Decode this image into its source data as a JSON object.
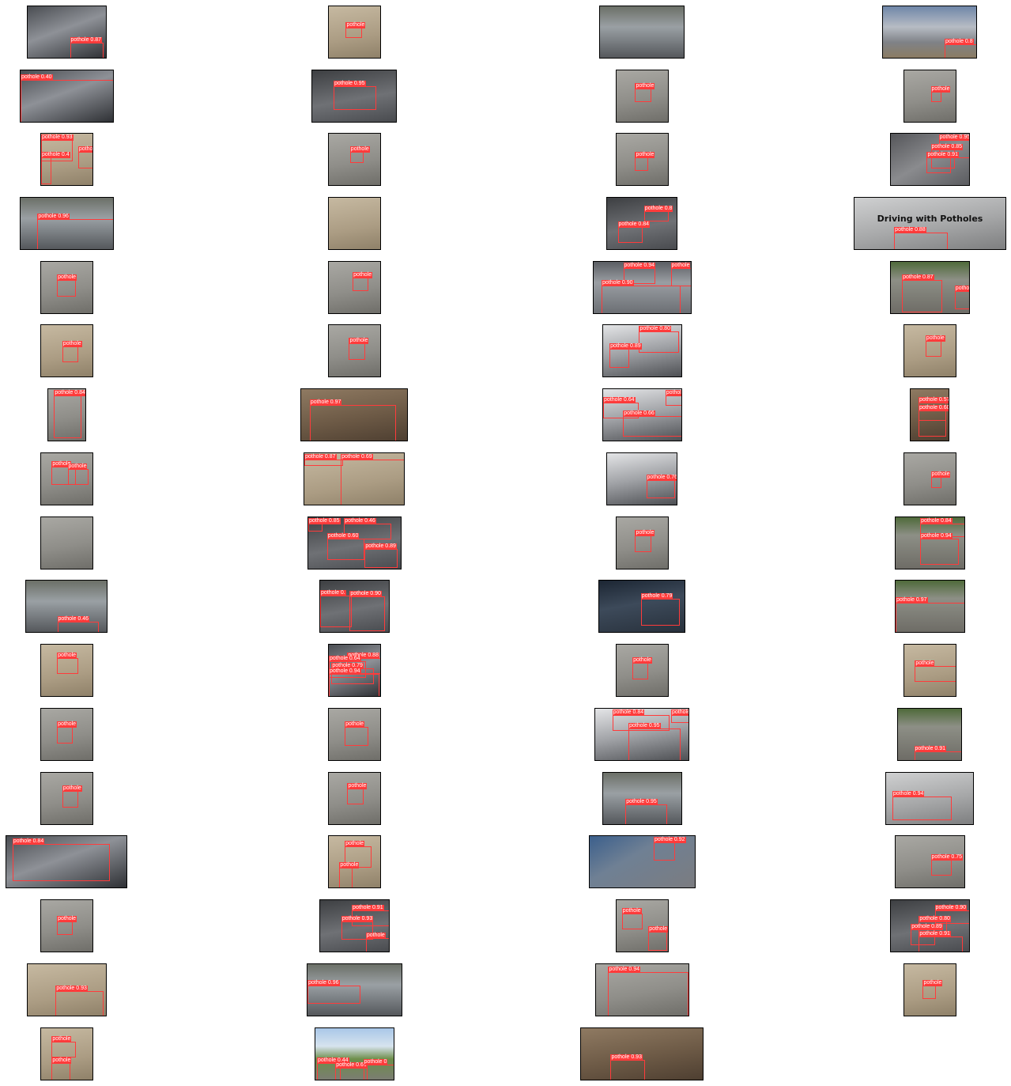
{
  "figure": {
    "rows": 17,
    "cols": 4,
    "box_color": "#ff3b3b",
    "border_color": "#000000"
  },
  "tiles": [
    {
      "tone": "dark",
      "dets": [
        {
          "label": "pothole",
          "score": "0.87"
        }
      ]
    },
    {
      "tone": "sand",
      "dets": [
        {
          "label": "pothole",
          "score": ""
        }
      ]
    },
    {
      "tone": "street",
      "dets": []
    },
    {
      "tone": "road",
      "dets": [
        {
          "label": "pothole",
          "score": "0.8"
        }
      ]
    },
    {
      "tone": "dark",
      "dets": [
        {
          "label": "pothole",
          "score": "0.40"
        }
      ]
    },
    {
      "tone": "asphalt",
      "dets": [
        {
          "label": "pothole",
          "score": "0.95"
        }
      ]
    },
    {
      "tone": "gray",
      "dets": [
        {
          "label": "pothole",
          "score": ""
        }
      ]
    },
    {
      "tone": "gray",
      "dets": [
        {
          "label": "pothole",
          "score": ""
        }
      ]
    },
    {
      "tone": "sand",
      "dets": [
        {
          "label": "pothole",
          "score": "0.93"
        },
        {
          "label": "pothole",
          "score": "0.4"
        },
        {
          "label": "pothole",
          "score": ""
        }
      ]
    },
    {
      "tone": "gray",
      "dets": [
        {
          "label": "pothole",
          "score": ""
        }
      ]
    },
    {
      "tone": "gray",
      "dets": [
        {
          "label": "pothole",
          "score": ""
        }
      ]
    },
    {
      "tone": "yellowline",
      "dets": [
        {
          "label": "pothole",
          "score": "0.95"
        },
        {
          "label": "pothole",
          "score": "0.85"
        },
        {
          "label": "pothole",
          "score": "0.91"
        }
      ]
    },
    {
      "tone": "street",
      "dets": [
        {
          "label": "pothole",
          "score": "0.96"
        }
      ]
    },
    {
      "tone": "sand",
      "dets": []
    },
    {
      "tone": "asphalt",
      "dets": [
        {
          "label": "pothole",
          "score": "0.8"
        },
        {
          "label": "pothole",
          "score": "0.84"
        }
      ]
    },
    {
      "tone": "light",
      "caption": "Driving with Potholes",
      "dets": [
        {
          "label": "pothole",
          "score": "0.88"
        }
      ]
    },
    {
      "tone": "gray",
      "dets": [
        {
          "label": "pothole",
          "score": ""
        }
      ]
    },
    {
      "tone": "gray",
      "dets": [
        {
          "label": "pothole",
          "score": ""
        }
      ]
    },
    {
      "tone": "wet",
      "dets": [
        {
          "label": "pothole",
          "score": "0.94"
        },
        {
          "label": "pothole",
          "score": "0.90"
        },
        {
          "label": "pothole",
          "score": ""
        }
      ]
    },
    {
      "tone": "green",
      "dets": [
        {
          "label": "pothole",
          "score": "0.87"
        },
        {
          "label": "pothole",
          "score": ""
        }
      ]
    },
    {
      "tone": "sand",
      "dets": [
        {
          "label": "pothole",
          "score": ""
        }
      ]
    },
    {
      "tone": "gray",
      "dets": [
        {
          "label": "pothole",
          "score": ""
        }
      ]
    },
    {
      "tone": "snow",
      "dets": [
        {
          "label": "pothole",
          "score": "0.80"
        },
        {
          "label": "pothole",
          "score": "0.89"
        }
      ]
    },
    {
      "tone": "sand",
      "dets": [
        {
          "label": "pothole",
          "score": ""
        }
      ]
    },
    {
      "tone": "gray",
      "dets": [
        {
          "label": "pothole",
          "score": "0.84"
        }
      ]
    },
    {
      "tone": "brown",
      "dets": [
        {
          "label": "pothole",
          "score": "0.97"
        }
      ]
    },
    {
      "tone": "snow",
      "dets": [
        {
          "label": "pothole",
          "score": "0.64"
        },
        {
          "label": "pothole",
          "score": "0.66"
        },
        {
          "label": "pothole",
          "score": ""
        }
      ]
    },
    {
      "tone": "brown",
      "dets": [
        {
          "label": "pothole",
          "score": "0.57"
        },
        {
          "label": "pothole",
          "score": "0.60"
        }
      ]
    },
    {
      "tone": "gray",
      "dets": [
        {
          "label": "pothole",
          "score": ""
        },
        {
          "label": "pothole",
          "score": ""
        }
      ]
    },
    {
      "tone": "sand",
      "dets": [
        {
          "label": "pothole",
          "score": "0.87"
        },
        {
          "label": "pothole",
          "score": "0.69"
        }
      ]
    },
    {
      "tone": "snow",
      "dets": [
        {
          "label": "pothole",
          "score": "0.76"
        }
      ]
    },
    {
      "tone": "gray",
      "dets": [
        {
          "label": "pothole",
          "score": ""
        }
      ]
    },
    {
      "tone": "gray",
      "dets": []
    },
    {
      "tone": "asphalt",
      "dets": [
        {
          "label": "pothole",
          "score": "0.85"
        },
        {
          "label": "pothole",
          "score": "0.46"
        },
        {
          "label": "pothole",
          "score": "0.60"
        },
        {
          "label": "pothole",
          "score": "0.89"
        }
      ]
    },
    {
      "tone": "gray",
      "dets": [
        {
          "label": "pothole",
          "score": ""
        }
      ]
    },
    {
      "tone": "green",
      "dets": [
        {
          "label": "pothole",
          "score": "0.84"
        },
        {
          "label": "pothole",
          "score": "0.94"
        }
      ]
    },
    {
      "tone": "street",
      "dets": [
        {
          "label": "pothole",
          "score": "0.46"
        }
      ]
    },
    {
      "tone": "asphalt",
      "dets": [
        {
          "label": "pothole",
          "score": "0."
        },
        {
          "label": "pothole",
          "score": "0.90"
        }
      ]
    },
    {
      "tone": "night",
      "dets": [
        {
          "label": "pothole",
          "score": "0.79"
        }
      ]
    },
    {
      "tone": "green",
      "dets": [
        {
          "label": "pothole",
          "score": "0.97"
        }
      ]
    },
    {
      "tone": "sand",
      "dets": [
        {
          "label": "pothole",
          "score": ""
        }
      ]
    },
    {
      "tone": "dark",
      "dets": [
        {
          "label": "pothole",
          "score": "0.88"
        },
        {
          "label": "pothole",
          "score": "0.64"
        },
        {
          "label": "pothole",
          "score": "0.79"
        },
        {
          "label": "pothole",
          "score": "0.94"
        }
      ]
    },
    {
      "tone": "gray",
      "dets": [
        {
          "label": "pothole",
          "score": ""
        }
      ]
    },
    {
      "tone": "sand",
      "dets": [
        {
          "label": "pothole",
          "score": ""
        }
      ]
    },
    {
      "tone": "gray",
      "dets": [
        {
          "label": "pothole",
          "score": ""
        }
      ]
    },
    {
      "tone": "gray",
      "dets": [
        {
          "label": "pothole",
          "score": ""
        }
      ]
    },
    {
      "tone": "snow",
      "dets": [
        {
          "label": "pothole",
          "score": "0.84"
        },
        {
          "label": "pothole",
          "score": "0.95"
        },
        {
          "label": "pothole",
          "score": ""
        }
      ]
    },
    {
      "tone": "green",
      "dets": [
        {
          "label": "pothole",
          "score": "0.91"
        }
      ]
    },
    {
      "tone": "gray",
      "dets": [
        {
          "label": "pothole",
          "score": ""
        }
      ]
    },
    {
      "tone": "gray",
      "dets": [
        {
          "label": "pothole",
          "score": ""
        }
      ]
    },
    {
      "tone": "street",
      "dets": [
        {
          "label": "pothole",
          "score": "0.95"
        }
      ]
    },
    {
      "tone": "light",
      "dets": [
        {
          "label": "pothole",
          "score": "0.94"
        }
      ]
    },
    {
      "tone": "dark",
      "dets": [
        {
          "label": "pothole",
          "score": "0.84"
        }
      ]
    },
    {
      "tone": "sand",
      "dets": [
        {
          "label": "pothole",
          "score": ""
        },
        {
          "label": "pothole",
          "score": ""
        }
      ]
    },
    {
      "tone": "bike",
      "dets": [
        {
          "label": "pothole",
          "score": "0.92"
        }
      ]
    },
    {
      "tone": "gray",
      "dets": [
        {
          "label": "pothole",
          "score": "0.75"
        }
      ]
    },
    {
      "tone": "gray",
      "dets": [
        {
          "label": "pothole",
          "score": ""
        }
      ]
    },
    {
      "tone": "asphalt",
      "dets": [
        {
          "label": "pothole",
          "score": "0.91"
        },
        {
          "label": "pothole",
          "score": "0.93"
        },
        {
          "label": "pothole",
          "score": ""
        }
      ]
    },
    {
      "tone": "gray",
      "dets": [
        {
          "label": "pothole",
          "score": ""
        },
        {
          "label": "pothole",
          "score": ""
        }
      ]
    },
    {
      "tone": "asphalt",
      "dets": [
        {
          "label": "pothole",
          "score": "0.90"
        },
        {
          "label": "pothole",
          "score": "0.80"
        },
        {
          "label": "pothole",
          "score": "0.89"
        },
        {
          "label": "pothole",
          "score": "0.91"
        }
      ]
    },
    {
      "tone": "sand",
      "dets": [
        {
          "label": "pothole",
          "score": "0.93"
        }
      ]
    },
    {
      "tone": "street",
      "dets": [
        {
          "label": "pothole",
          "score": "0.96"
        }
      ]
    },
    {
      "tone": "gray",
      "dets": [
        {
          "label": "pothole",
          "score": "0.94"
        }
      ]
    },
    {
      "tone": "sand",
      "dets": [
        {
          "label": "pothole",
          "score": ""
        }
      ]
    },
    {
      "tone": "sand",
      "dets": [
        {
          "label": "pothole",
          "score": ""
        },
        {
          "label": "pothole",
          "score": ""
        }
      ]
    },
    {
      "tone": "sky",
      "dets": [
        {
          "label": "pothole",
          "score": "0.44"
        },
        {
          "label": "pothole",
          "score": "0.60"
        },
        {
          "label": "pothole",
          "score": "0"
        }
      ]
    },
    {
      "tone": "brown",
      "dets": [
        {
          "label": "pothole",
          "score": "0.93"
        }
      ]
    }
  ]
}
